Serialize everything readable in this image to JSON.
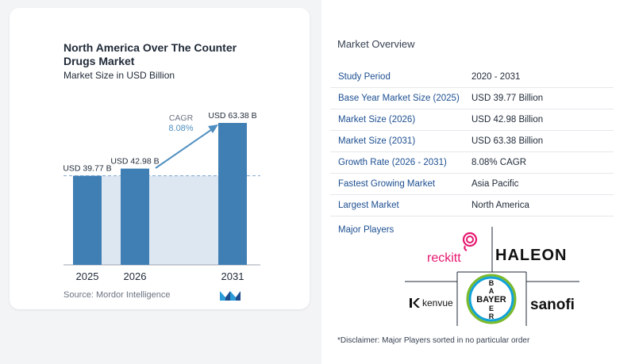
{
  "chart_data": {
    "type": "bar",
    "title": "North America Over The Counter Drugs Market",
    "subtitle": "Market Size in USD Billion",
    "categories": [
      "2025",
      "2026",
      "2031"
    ],
    "values": [
      39.77,
      42.98,
      63.38
    ],
    "data_labels": [
      "USD 39.77 B",
      "USD 42.98 B",
      "USD 63.38 B"
    ],
    "cagr_label": "CAGR",
    "cagr_value": "8.08%",
    "ylim": [
      0,
      63.38
    ],
    "colors": {
      "bar": "#3f7fb4",
      "band": "#dde7f2",
      "arrow": "#4f8fc0",
      "dashed": "#7fa8cf"
    }
  },
  "left": {
    "source": "Source:  Mordor Intelligence"
  },
  "overview": {
    "title": "Market Overview",
    "rows": [
      {
        "key": "Study Period",
        "value": "2020 - 2031"
      },
      {
        "key": "Base Year Market Size (2025)",
        "value": "USD 39.77 Billion"
      },
      {
        "key": "Market Size (2026)",
        "value": "USD 42.98 Billion"
      },
      {
        "key": "Market Size (2031)",
        "value": "USD 63.38 Billion"
      },
      {
        "key": "Growth Rate (2026 - 2031)",
        "value": "8.08% CAGR"
      },
      {
        "key": "Fastest Growing Market",
        "value": "Asia Pacific"
      },
      {
        "key": "Largest Market",
        "value": "North America"
      }
    ],
    "players_label": "Major Players",
    "players": [
      "reckitt",
      "HALEON",
      "kenvue",
      "BAYER",
      "sanofi"
    ],
    "disclaimer": "*Disclaimer: Major Players sorted in no particular order"
  }
}
